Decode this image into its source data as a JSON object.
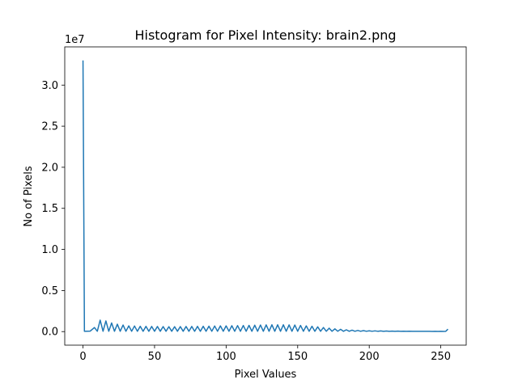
{
  "chart_data": {
    "type": "line",
    "title": "Histogram for Pixel Intensity: brain2.png",
    "xlabel": "Pixel Values",
    "ylabel": "No of Pixels",
    "y_offset_label": "1e7",
    "xlim": [
      -12.75,
      267.75
    ],
    "ylim": [
      -1650000,
      34650000
    ],
    "grid": false,
    "x_ticks": [
      0,
      50,
      100,
      150,
      200,
      250
    ],
    "x_tick_labels": [
      "0",
      "50",
      "100",
      "150",
      "200",
      "250"
    ],
    "y_ticks": [
      0,
      5000000,
      10000000,
      15000000,
      20000000,
      25000000,
      30000000
    ],
    "y_tick_labels": [
      "0.0",
      "0.5",
      "1.0",
      "1.5",
      "2.0",
      "2.5",
      "3.0"
    ],
    "series_color": "#1f77b4",
    "peak_x": [
      0,
      8,
      12,
      16,
      20,
      24,
      28,
      32,
      36,
      40,
      44,
      48,
      52,
      56,
      60,
      64,
      68,
      72,
      76,
      80,
      84,
      88,
      92,
      96,
      100,
      104,
      108,
      112,
      116,
      120,
      124,
      128,
      132,
      136,
      140,
      144,
      148,
      152,
      156,
      160,
      164,
      168,
      172,
      176,
      180,
      184,
      188,
      192,
      196,
      200,
      204,
      208,
      212,
      216,
      220,
      224,
      228,
      232,
      236,
      240,
      244,
      248,
      252,
      255
    ],
    "peak_values": [
      33000000,
      500000,
      1400000,
      1300000,
      1050000,
      900000,
      800000,
      700000,
      680000,
      650000,
      640000,
      630000,
      620000,
      610000,
      600000,
      600000,
      610000,
      620000,
      630000,
      640000,
      650000,
      660000,
      680000,
      700000,
      700000,
      720000,
      730000,
      740000,
      760000,
      780000,
      800000,
      820000,
      830000,
      830000,
      830000,
      820000,
      800000,
      750000,
      700000,
      650000,
      580000,
      500000,
      420000,
      340000,
      280000,
      220000,
      180000,
      140000,
      120000,
      100000,
      90000,
      80000,
      70000,
      60000,
      55000,
      50000,
      45000,
      40000,
      35000,
      30000,
      25000,
      20000,
      20000,
      300000
    ],
    "trough_value": 40000
  }
}
